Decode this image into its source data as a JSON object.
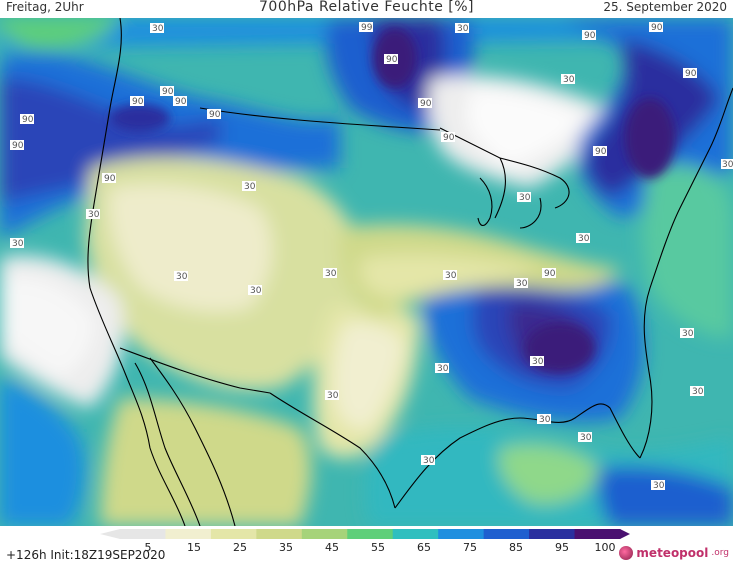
{
  "header": {
    "day_time": "Freitag, 2Uhr",
    "title": "700hPa Relative Feuchte [%]",
    "date": "25. September 2020"
  },
  "map": {
    "contour_labels": [
      "99",
      "90",
      "90",
      "90",
      "90",
      "90",
      "90",
      "90",
      "90",
      "90",
      "90",
      "90",
      "90",
      "90",
      "90",
      "90",
      "30",
      "30",
      "30",
      "30",
      "30",
      "30",
      "30",
      "30",
      "30",
      "30",
      "30",
      "30",
      "30",
      "30",
      "30",
      "30",
      "30",
      "30",
      "30",
      "30",
      "30",
      "30",
      "30"
    ]
  },
  "colorbar": {
    "ticks": [
      "5",
      "15",
      "25",
      "35",
      "45",
      "55",
      "65",
      "75",
      "85",
      "95",
      "100"
    ],
    "colors": [
      "#e6e6e6",
      "#f1efd0",
      "#e4e6a8",
      "#cfd98a",
      "#a6d37a",
      "#5fcf7a",
      "#2fbfbf",
      "#1f8fdf",
      "#1f5fcf",
      "#2a2f9f",
      "#4a1070"
    ]
  },
  "footer": {
    "run_info": "+126h  Init:18Z19SEP2020",
    "brand_name": "meteopool",
    "brand_tld": ".org"
  }
}
